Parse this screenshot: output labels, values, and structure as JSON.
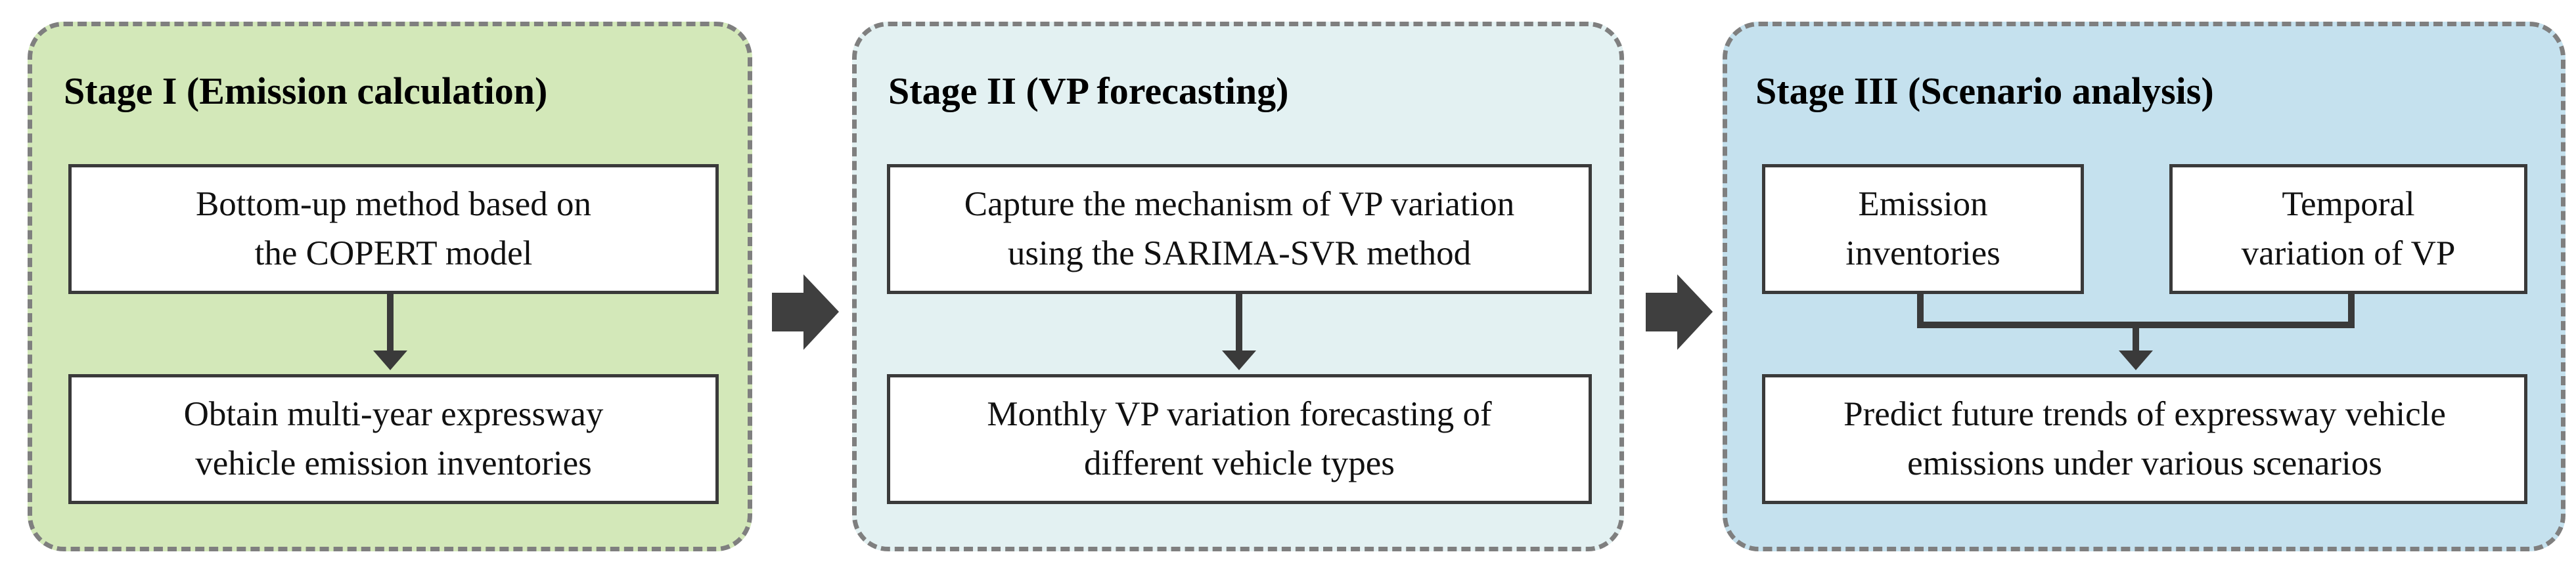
{
  "colors": {
    "stage1_fill": "#d3e8b9",
    "stage2_fill": "#e3f1f2",
    "stage3_fill": "#c5e1ee",
    "dashed_border": "#7f7f7f",
    "connector": "#3a3a3a"
  },
  "stage1": {
    "title": "Stage I (Emission calculation)",
    "box_top": {
      "line1": "Bottom-up method based on",
      "line2": "the COPERT model"
    },
    "box_bottom": {
      "line1": "Obtain multi-year expressway",
      "line2": "vehicle emission inventories"
    }
  },
  "stage2": {
    "title": "Stage II (VP forecasting)",
    "box_top": {
      "line1": "Capture the mechanism of VP variation",
      "line2": "using the SARIMA-SVR method"
    },
    "box_bottom": {
      "line1": "Monthly VP variation forecasting of",
      "line2": "different vehicle types"
    }
  },
  "stage3": {
    "title": "Stage III (Scenario analysis)",
    "box_left": {
      "line1": "Emission",
      "line2": "inventories"
    },
    "box_right": {
      "line1": "Temporal",
      "line2": "variation of VP"
    },
    "box_bottom": {
      "line1": "Predict future trends of expressway vehicle",
      "line2": "emissions under various scenarios"
    }
  }
}
